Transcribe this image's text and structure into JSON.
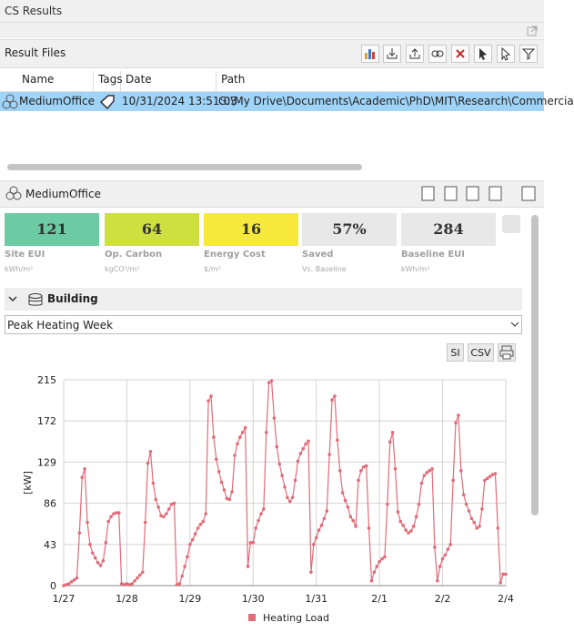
{
  "panel": {
    "title": "CS Results",
    "result_files": "Result Files",
    "table": {
      "columns": [
        "Name",
        "Tags",
        "Date",
        "Path"
      ],
      "row": {
        "name": "MediumOffice",
        "date": "10/31/2024 13:51:03",
        "path": "G:\\My Drive\\Documents\\Academic\\PhD\\MIT\\Research\\Commercia"
      }
    },
    "model": "MediumOffice",
    "kpis": [
      {
        "value": "121",
        "label": "Site EUI",
        "unit": "kWh/m²"
      },
      {
        "value": "64",
        "label": "Op. Carbon",
        "unit": "kgCO²/m²"
      },
      {
        "value": "16",
        "label": "Energy Cost",
        "unit": "$/m²"
      },
      {
        "value": "57%",
        "label": "Saved",
        "unit": "Vs. Baseline"
      },
      {
        "value": "284",
        "label": "Baseline EUI",
        "unit": "kWh/m²"
      }
    ],
    "section": "Building",
    "dropdown": "Peak Heating Week",
    "buttons": [
      "SI",
      "CSV"
    ]
  },
  "chart_data": {
    "type": "line",
    "y_label": "[kW]",
    "categories": [
      "1/27",
      null,
      null,
      null,
      null,
      null,
      null,
      null,
      null,
      null,
      null,
      null,
      null,
      null,
      null,
      null,
      null,
      null,
      null,
      null,
      null,
      null,
      null,
      null,
      "1/28",
      null,
      null,
      null,
      null,
      null,
      null,
      null,
      null,
      null,
      null,
      null,
      null,
      null,
      null,
      null,
      null,
      null,
      null,
      null,
      null,
      null,
      null,
      null,
      "1/29",
      null,
      null,
      null,
      null,
      null,
      null,
      null,
      null,
      null,
      null,
      null,
      null,
      null,
      null,
      null,
      null,
      null,
      null,
      null,
      null,
      null,
      null,
      null,
      "1/30",
      null,
      null,
      null,
      null,
      null,
      null,
      null,
      null,
      null,
      null,
      null,
      null,
      null,
      null,
      null,
      null,
      null,
      null,
      null,
      null,
      null,
      null,
      null,
      "1/31",
      null,
      null,
      null,
      null,
      null,
      null,
      null,
      null,
      null,
      null,
      null,
      null,
      null,
      null,
      null,
      null,
      null,
      null,
      null,
      null,
      null,
      null,
      null,
      "2/1",
      null,
      null,
      null,
      null,
      null,
      null,
      null,
      null,
      null,
      null,
      null,
      null,
      null,
      null,
      null,
      null,
      null,
      null,
      null,
      null,
      null,
      null,
      null,
      "2/2",
      null,
      null,
      null,
      null,
      null,
      null,
      null,
      null,
      null,
      null,
      null,
      null,
      null,
      null,
      null,
      null,
      null,
      null,
      null,
      null,
      null,
      null,
      null,
      "2/4"
    ],
    "series": [
      {
        "name": "Heating Load",
        "color": "#e06c78",
        "values": [
          0,
          1,
          2,
          4,
          6,
          8,
          55,
          113,
          122,
          66,
          43,
          34,
          29,
          24,
          21,
          26,
          45,
          67,
          72,
          75,
          76,
          76,
          2,
          1,
          2,
          1,
          2,
          5,
          8,
          11,
          14,
          66,
          128,
          140,
          107,
          90,
          82,
          73,
          72,
          75,
          80,
          85,
          86,
          1,
          2,
          10,
          20,
          30,
          43,
          48,
          54,
          60,
          64,
          67,
          75,
          193,
          198,
          155,
          132,
          119,
          108,
          100,
          91,
          90,
          98,
          136,
          148,
          155,
          160,
          165,
          20,
          45,
          45,
          60,
          68,
          75,
          80,
          160,
          212,
          214,
          175,
          145,
          127,
          115,
          103,
          92,
          88,
          92,
          110,
          130,
          138,
          143,
          148,
          151,
          14,
          43,
          50,
          58,
          63,
          70,
          78,
          137,
          194,
          198,
          152,
          120,
          97,
          89,
          82,
          72,
          68,
          62,
          110,
          120,
          124,
          125,
          60,
          5,
          14,
          20,
          25,
          28,
          30,
          85,
          150,
          160,
          122,
          77,
          67,
          63,
          58,
          55,
          57,
          62,
          72,
          85,
          107,
          115,
          118,
          120,
          122,
          40,
          5,
          20,
          28,
          32,
          38,
          43,
          110,
          170,
          178,
          120,
          95,
          85,
          78,
          70,
          66,
          60,
          62,
          80,
          110,
          112,
          114,
          116,
          117,
          60,
          3,
          12,
          12
        ]
      }
    ],
    "ylim": [
      0,
      215
    ],
    "yticks": [
      0,
      43,
      86,
      129,
      172,
      215
    ],
    "grid": true
  }
}
